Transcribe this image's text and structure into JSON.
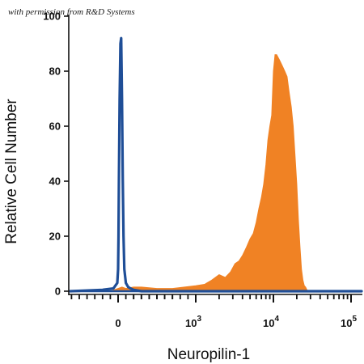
{
  "watermark": "with permission from R&D Systems",
  "colors": {
    "isotype": "#1f4e97",
    "stained": "#f08224",
    "axis": "#111111"
  },
  "chart_data": {
    "type": "area",
    "xlabel": "Neuropilin-1",
    "ylabel": "Relative Cell Number",
    "xscale": "biexponential",
    "ylim": [
      0,
      100
    ],
    "yticks": [
      0,
      20,
      40,
      60,
      80,
      100
    ],
    "xticks": [
      {
        "value": 0,
        "base": "0",
        "exp": ""
      },
      {
        "value": 1000,
        "base": "10",
        "exp": "3"
      },
      {
        "value": 10000,
        "base": "10",
        "exp": "4"
      },
      {
        "value": 100000,
        "base": "10",
        "exp": "5"
      }
    ],
    "grid": false,
    "series": [
      {
        "color": "#1f4e97",
        "style": "outline",
        "x": [
          -1000,
          -200,
          -60,
          -10,
          0,
          5,
          10,
          20,
          30,
          40,
          50,
          60,
          70,
          80,
          100,
          130,
          160,
          200,
          300,
          500,
          800,
          1500,
          3000,
          6000,
          20000,
          100000,
          200000
        ],
        "y": [
          0,
          0.5,
          1,
          3,
          8,
          20,
          40,
          70,
          90,
          92,
          70,
          40,
          20,
          8,
          3,
          1.5,
          1,
          0.5,
          0,
          0,
          0,
          0,
          0,
          0,
          0,
          0,
          0
        ]
      },
      {
        "color": "#f08224",
        "style": "filled",
        "x": [
          -1000,
          -100,
          0,
          50,
          100,
          200,
          300,
          500,
          700,
          1000,
          1300,
          1600,
          2000,
          2400,
          2800,
          3200,
          3600,
          4000,
          4500,
          5000,
          5500,
          6000,
          6500,
          7000,
          7500,
          8000,
          8500,
          9000,
          9500,
          10000,
          10500,
          11000,
          11500,
          12000,
          13000,
          14000,
          15000,
          16000,
          17000,
          18000,
          19000,
          20000,
          21000,
          22000,
          23000,
          24000,
          25000,
          26000,
          27000,
          28000,
          32000,
          50000,
          100000,
          200000
        ],
        "y": [
          0,
          0,
          1,
          1.5,
          1,
          1.5,
          1.5,
          1,
          1,
          2,
          2.5,
          4,
          6,
          5,
          7,
          10,
          11,
          13,
          16,
          19,
          21,
          25,
          30,
          34,
          39,
          46,
          55,
          60,
          64,
          80,
          86,
          86,
          85,
          84,
          82,
          80,
          78,
          72,
          67,
          60,
          49,
          39,
          26,
          16,
          8,
          4,
          2,
          1.5,
          0.5,
          0,
          0,
          0,
          0,
          0
        ]
      }
    ]
  }
}
